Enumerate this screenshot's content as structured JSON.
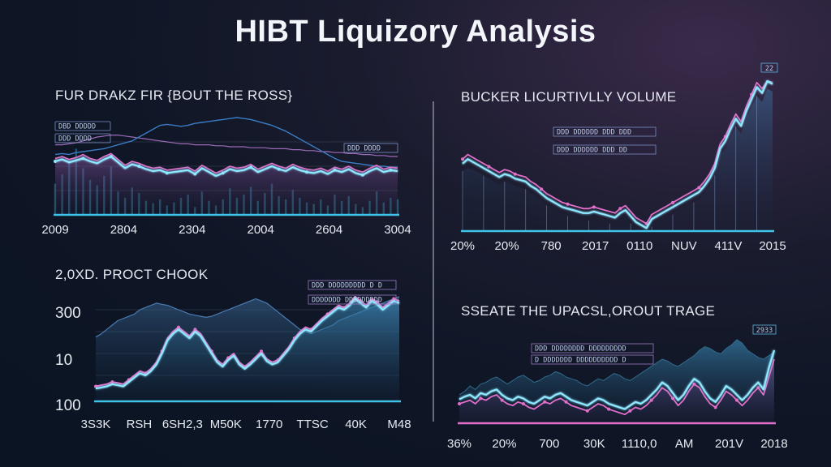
{
  "page": {
    "title": "HIBT Liquizory Analysis"
  },
  "colors": {
    "cyan": "#8fe8ff",
    "pink": "#e26fc9",
    "purple": "#9c6ab8",
    "blue": "#3a7cc4",
    "axis": "#3ec4e8",
    "grid": "#5a6a80"
  },
  "chart_data": [
    {
      "id": "tl",
      "type": "line",
      "title": "FUR DRAKZ FIR {BOUT THE ROSS}",
      "legend": [
        "DBD DDDDD",
        "DDD DDDD"
      ],
      "x_ticks": [
        "2009",
        "2804",
        "2304",
        "2004",
        "2604",
        "3004"
      ],
      "ylim": [
        0,
        100
      ],
      "series": [
        {
          "name": "main",
          "color": "#8fe8ff",
          "values": [
            55,
            57,
            54,
            56,
            58,
            55,
            53,
            57,
            60,
            54,
            48,
            52,
            50,
            47,
            45,
            46,
            43,
            44,
            45,
            46,
            42,
            48,
            44,
            40,
            43,
            47,
            45,
            46,
            49,
            44,
            47,
            50,
            47,
            45,
            49,
            46,
            44,
            43,
            45,
            42,
            46,
            44,
            47,
            43,
            41,
            45,
            48,
            44,
            46,
            45
          ]
        },
        {
          "name": "pink",
          "color": "#e26fc9",
          "values": [
            58,
            60,
            57,
            59,
            62,
            58,
            56,
            60,
            63,
            57,
            51,
            55,
            53,
            50,
            48,
            49,
            46,
            47,
            48,
            49,
            45,
            51,
            47,
            43,
            46,
            50,
            48,
            49,
            52,
            47,
            50,
            53,
            50,
            48,
            52,
            49,
            47,
            46,
            48,
            45,
            49,
            47,
            50,
            46,
            44,
            48,
            51,
            47,
            49,
            48
          ]
        },
        {
          "name": "trend",
          "color": "#3a7cc4",
          "values": [
            62,
            63,
            62,
            64,
            65,
            66,
            67,
            68,
            70,
            72,
            74,
            76,
            80,
            84,
            88,
            92,
            93,
            92,
            91,
            92,
            94,
            95,
            96,
            97,
            98,
            99,
            100,
            99,
            98,
            96,
            94,
            92,
            89,
            86,
            82,
            78,
            74,
            70,
            66,
            62,
            58,
            55,
            54,
            53,
            52,
            51,
            50,
            50,
            49,
            49
          ]
        },
        {
          "name": "band",
          "color": "#9c6ab8",
          "values": [
            72,
            72,
            73,
            74,
            76,
            78,
            80,
            81,
            82,
            82,
            81,
            80,
            79,
            78,
            77,
            76,
            75,
            74,
            73,
            73,
            72,
            72,
            72,
            71,
            71,
            70,
            70,
            70,
            69,
            69,
            69,
            68,
            68,
            68,
            67,
            67,
            66,
            66,
            65,
            65,
            64,
            64,
            63,
            63,
            62,
            62,
            61,
            61,
            60,
            60
          ]
        },
        {
          "name": "bars",
          "color": "#3ea0c0",
          "values": [
            40,
            52,
            70,
            85,
            60,
            45,
            38,
            50,
            62,
            30,
            22,
            35,
            28,
            18,
            15,
            20,
            12,
            16,
            22,
            26,
            10,
            30,
            18,
            12,
            20,
            34,
            22,
            26,
            36,
            18,
            28,
            40,
            24,
            20,
            32,
            22,
            16,
            14,
            20,
            12,
            26,
            18,
            24,
            14,
            10,
            18,
            30,
            16,
            22,
            20
          ]
        }
      ]
    },
    {
      "id": "tr",
      "type": "line",
      "title": "BUCKER LICURTIVLLY VOLUME",
      "legend": [
        "DDD DDDDDD DDD DDD",
        "DDD DDDDDD DDD DD"
      ],
      "corner_label": "22",
      "x_ticks": [
        "20%",
        "20%",
        "780",
        "2017",
        "0110",
        "NUV",
        "411V",
        "2015"
      ],
      "ylim": [
        0,
        100
      ],
      "series": [
        {
          "name": "main",
          "color": "#8fe8ff",
          "values": [
            45,
            48,
            46,
            44,
            42,
            40,
            38,
            36,
            38,
            37,
            35,
            34,
            33,
            30,
            28,
            25,
            22,
            20,
            18,
            16,
            15,
            14,
            13,
            12,
            12,
            13,
            12,
            11,
            10,
            9,
            12,
            14,
            10,
            6,
            4,
            2,
            8,
            10,
            12,
            14,
            16,
            18,
            20,
            22,
            24,
            26,
            30,
            35,
            42,
            55,
            60,
            68,
            75,
            70,
            80,
            88,
            96,
            92,
            100,
            98
          ]
        },
        {
          "name": "pink",
          "color": "#e26fc9",
          "values": [
            48,
            51,
            49,
            47,
            45,
            43,
            41,
            39,
            41,
            40,
            38,
            37,
            36,
            33,
            31,
            28,
            25,
            23,
            21,
            19,
            18,
            17,
            16,
            15,
            15,
            16,
            15,
            14,
            13,
            12,
            15,
            17,
            13,
            9,
            7,
            5,
            11,
            13,
            15,
            17,
            19,
            21,
            23,
            25,
            27,
            29,
            33,
            38,
            45,
            58,
            63,
            71,
            78,
            73,
            83,
            91,
            99,
            95,
            100,
            99
          ]
        },
        {
          "name": "fill",
          "color": "#2a3a66",
          "values": [
            40,
            42,
            41,
            39,
            37,
            35,
            33,
            31,
            33,
            32,
            30,
            29,
            28,
            25,
            23,
            20,
            17,
            15,
            13,
            11,
            10,
            9,
            8,
            7,
            7,
            8,
            7,
            6,
            5,
            4,
            7,
            9,
            5,
            2,
            1,
            0,
            3,
            5,
            7,
            9,
            11,
            13,
            15,
            17,
            19,
            21,
            25,
            30,
            37,
            50,
            55,
            63,
            70,
            65,
            75,
            83,
            90,
            86,
            95,
            93
          ]
        }
      ]
    },
    {
      "id": "bl",
      "type": "line",
      "title": "2,0XD. PROCT CHOOK",
      "legend": [
        "DDD DDDDDDDDD D D",
        "DDDDDDD DDDDDDDDD"
      ],
      "y_labels": [
        "300",
        "10",
        "100"
      ],
      "x_ticks": [
        "3S3K",
        "RSH",
        "6SH2,3",
        "M50K",
        "1770",
        "TTSC",
        "40K",
        "M48"
      ],
      "ylim": [
        0,
        100
      ],
      "series": [
        {
          "name": "main",
          "color": "#8fe8ff",
          "values": [
            8,
            9,
            10,
            12,
            11,
            10,
            14,
            18,
            22,
            20,
            24,
            30,
            40,
            52,
            58,
            62,
            58,
            54,
            60,
            56,
            48,
            40,
            32,
            28,
            34,
            38,
            30,
            26,
            30,
            35,
            40,
            33,
            30,
            32,
            38,
            44,
            52,
            58,
            62,
            60,
            65,
            70,
            74,
            78,
            82,
            80,
            84,
            90,
            86,
            82,
            88,
            85,
            80,
            84,
            88,
            86
          ]
        },
        {
          "name": "pink",
          "color": "#e26fc9",
          "values": [
            10,
            11,
            12,
            14,
            13,
            12,
            16,
            20,
            24,
            22,
            26,
            32,
            42,
            54,
            60,
            64,
            60,
            56,
            62,
            58,
            50,
            42,
            34,
            30,
            36,
            40,
            32,
            28,
            32,
            37,
            42,
            35,
            32,
            34,
            40,
            46,
            54,
            60,
            64,
            62,
            67,
            72,
            76,
            80,
            84,
            82,
            86,
            92,
            88,
            84,
            90,
            87,
            82,
            86,
            90,
            88
          ]
        },
        {
          "name": "band",
          "color": "#4a7ab0",
          "values": [
            55,
            58,
            62,
            66,
            70,
            72,
            74,
            76,
            80,
            82,
            84,
            86,
            85,
            84,
            82,
            80,
            78,
            76,
            75,
            74,
            73,
            74,
            76,
            78,
            80,
            82,
            84,
            86,
            88,
            90,
            88,
            86,
            82,
            78,
            74,
            70,
            66,
            62,
            60,
            58,
            60,
            62,
            64,
            66,
            70,
            72,
            74,
            76,
            78,
            80,
            82,
            84,
            86,
            88,
            90,
            92
          ]
        }
      ]
    },
    {
      "id": "br",
      "type": "area",
      "title": "SSEATE THE UPACSL,OROUT TRAGE",
      "legend": [
        "DDD DDDDDDDD DDDDDDDDD",
        "D DDDDDDD DDDDDDDDDD D"
      ],
      "corner_label": "2933",
      "x_ticks": [
        "36%",
        "20%",
        "700",
        "30K",
        "1110,0",
        "AM",
        "201V",
        "2018"
      ],
      "ylim": [
        0,
        100
      ],
      "series": [
        {
          "name": "main",
          "color": "#8fe8ff",
          "values": [
            25,
            28,
            30,
            26,
            32,
            30,
            34,
            36,
            30,
            26,
            24,
            28,
            26,
            22,
            20,
            24,
            28,
            26,
            30,
            32,
            28,
            24,
            22,
            20,
            18,
            22,
            26,
            24,
            20,
            18,
            16,
            14,
            18,
            22,
            20,
            24,
            30,
            36,
            44,
            40,
            32,
            24,
            30,
            40,
            48,
            44,
            34,
            26,
            22,
            30,
            40,
            36,
            30,
            24,
            30,
            38,
            44,
            36,
            60,
            80
          ]
        },
        {
          "name": "pink",
          "color": "#e26fc9",
          "values": [
            20,
            22,
            24,
            20,
            26,
            24,
            28,
            30,
            24,
            20,
            18,
            22,
            20,
            16,
            14,
            18,
            22,
            20,
            24,
            26,
            22,
            18,
            16,
            14,
            12,
            16,
            20,
            18,
            14,
            12,
            10,
            8,
            12,
            16,
            14,
            18,
            24,
            30,
            38,
            34,
            26,
            18,
            24,
            34,
            42,
            38,
            28,
            20,
            16,
            24,
            34,
            30,
            24,
            18,
            24,
            32,
            38,
            30,
            50,
            70
          ]
        },
        {
          "name": "area",
          "color": "#2f6a8a",
          "values": [
            30,
            34,
            40,
            36,
            42,
            44,
            48,
            50,
            46,
            42,
            46,
            50,
            52,
            48,
            44,
            46,
            50,
            52,
            56,
            54,
            50,
            48,
            46,
            42,
            40,
            44,
            48,
            46,
            50,
            54,
            52,
            48,
            46,
            50,
            54,
            58,
            62,
            66,
            70,
            68,
            64,
            62,
            66,
            70,
            74,
            80,
            84,
            82,
            78,
            76,
            82,
            86,
            92,
            88,
            80,
            76,
            72,
            70,
            74,
            78
          ]
        }
      ]
    }
  ]
}
